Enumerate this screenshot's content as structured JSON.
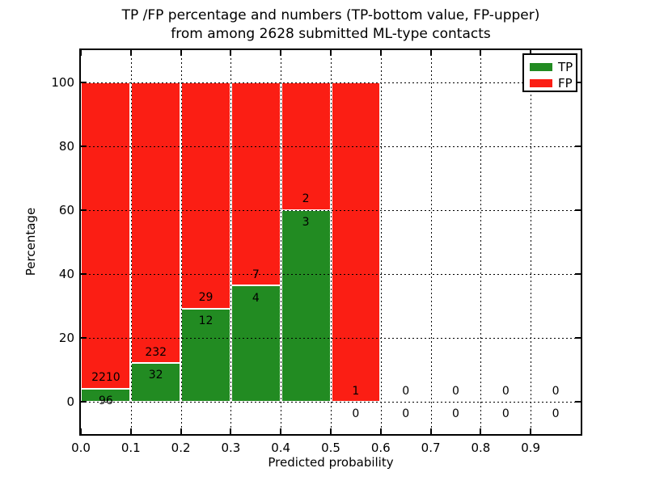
{
  "figure": {
    "title_line1": "TP /FP percentage and numbers (TP-bottom value, FP-upper)",
    "title_line2": "from among 2628 submitted ML-type contacts"
  },
  "chart_data": {
    "type": "bar",
    "stacked": true,
    "normalization": "percent of bin (TP+FP = 100%)",
    "title": "TP /FP percentage and numbers (TP-bottom value, FP-upper) from among 2628 submitted ML-type contacts",
    "xlabel": "Predicted probability",
    "ylabel": "Percentage",
    "xlim": [
      0.0,
      1.0
    ],
    "ylim": [
      -10,
      110
    ],
    "bin_width": 0.1,
    "bin_starts": [
      0.0,
      0.1,
      0.2,
      0.3,
      0.4,
      0.5,
      0.6,
      0.7,
      0.8,
      0.9
    ],
    "xtick_labels": [
      "0.0",
      "0.1",
      "0.2",
      "0.3",
      "0.4",
      "0.5",
      "0.6",
      "0.7",
      "0.8",
      "0.9"
    ],
    "ytick_values": [
      0,
      20,
      40,
      60,
      80,
      100
    ],
    "series": [
      {
        "name": "TP",
        "color": "#228b22",
        "counts": [
          96,
          32,
          12,
          4,
          3,
          0,
          0,
          0,
          0,
          0
        ]
      },
      {
        "name": "FP",
        "color": "#fb1e14",
        "counts": [
          2210,
          232,
          29,
          7,
          2,
          1,
          0,
          0,
          0,
          0
        ]
      }
    ],
    "tp_percent_of_bin": [
      4.16,
      12.12,
      29.27,
      36.36,
      60.0,
      0.0,
      0.0,
      0.0,
      0.0,
      0.0
    ],
    "total_contacts": 2628,
    "grid": {
      "style": "dotted",
      "color": "#000000",
      "axisbelow": false
    },
    "legend": {
      "position": "upper right",
      "entries": [
        {
          "label": "TP",
          "color": "#228b22"
        },
        {
          "label": "FP",
          "color": "#fb1e14"
        }
      ]
    }
  },
  "colors": {
    "tp_green": "#228b22",
    "fp_red": "#fb1e14",
    "background": "#ffffff",
    "text": "#000000"
  }
}
